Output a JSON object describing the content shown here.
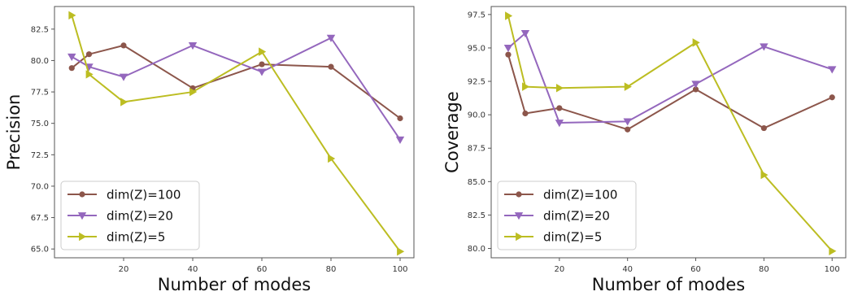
{
  "colors": {
    "dim100": "#8c564b",
    "dim20": "#9467bd",
    "dim5": "#bcbd22"
  },
  "chart_data": [
    {
      "type": "line",
      "xlabel": "Number of modes",
      "ylabel": "Precision",
      "xlim": [
        0,
        104
      ],
      "ylim": [
        64.3,
        84.3
      ],
      "xticks": [
        20,
        40,
        60,
        80,
        100
      ],
      "yticks": [
        65.0,
        67.5,
        70.0,
        72.5,
        75.0,
        77.5,
        80.0,
        82.5
      ],
      "xtick_labels": [
        "20",
        "40",
        "60",
        "80",
        "100"
      ],
      "ytick_labels": [
        "65.0",
        "67.5",
        "70.0",
        "72.5",
        "75.0",
        "77.5",
        "80.0",
        "82.5"
      ],
      "legend_position": "lower-left",
      "series": [
        {
          "name": "dim(Z)=100",
          "marker": "circle",
          "color": "#8c564b",
          "x": [
            5,
            10,
            20,
            40,
            60,
            80,
            100
          ],
          "y": [
            79.4,
            80.5,
            81.2,
            77.8,
            79.7,
            79.5,
            75.4
          ]
        },
        {
          "name": "dim(Z)=20",
          "marker": "triangle-down",
          "color": "#9467bd",
          "x": [
            5,
            10,
            20,
            40,
            60,
            80,
            100
          ],
          "y": [
            80.3,
            79.5,
            78.7,
            81.2,
            79.1,
            81.8,
            73.7
          ]
        },
        {
          "name": "dim(Z)=5",
          "marker": "triangle-right",
          "color": "#bcbd22",
          "x": [
            5,
            10,
            20,
            40,
            60,
            80,
            100
          ],
          "y": [
            83.6,
            78.9,
            76.7,
            77.5,
            80.7,
            72.2,
            64.8
          ]
        }
      ]
    },
    {
      "type": "line",
      "xlabel": "Number of modes",
      "ylabel": "Coverage",
      "xlim": [
        0,
        104
      ],
      "ylim": [
        79.3,
        98.1
      ],
      "xticks": [
        20,
        40,
        60,
        80,
        100
      ],
      "yticks": [
        80.0,
        82.5,
        85.0,
        87.5,
        90.0,
        92.5,
        95.0,
        97.5
      ],
      "xtick_labels": [
        "20",
        "40",
        "60",
        "80",
        "100"
      ],
      "ytick_labels": [
        "80.0",
        "82.5",
        "85.0",
        "87.5",
        "90.0",
        "92.5",
        "95.0",
        "97.5"
      ],
      "legend_position": "lower-left",
      "series": [
        {
          "name": "dim(Z)=100",
          "marker": "circle",
          "color": "#8c564b",
          "x": [
            5,
            10,
            20,
            40,
            60,
            80,
            100
          ],
          "y": [
            94.5,
            90.1,
            90.5,
            88.9,
            91.9,
            89.0,
            91.3
          ]
        },
        {
          "name": "dim(Z)=20",
          "marker": "triangle-down",
          "color": "#9467bd",
          "x": [
            5,
            10,
            20,
            40,
            60,
            80,
            100
          ],
          "y": [
            95.0,
            96.1,
            89.4,
            89.5,
            92.3,
            95.1,
            93.4
          ]
        },
        {
          "name": "dim(Z)=5",
          "marker": "triangle-right",
          "color": "#bcbd22",
          "x": [
            5,
            10,
            20,
            40,
            60,
            80,
            100
          ],
          "y": [
            97.4,
            92.1,
            92.0,
            92.1,
            95.4,
            85.5,
            79.8
          ]
        }
      ]
    }
  ]
}
